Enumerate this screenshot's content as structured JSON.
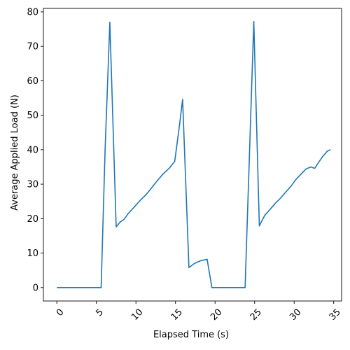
{
  "chart_data": {
    "type": "line",
    "title": "",
    "xlabel": "Elapsed Time (s)",
    "ylabel": "Average Applied Load (N)",
    "xlim": [
      -1.7,
      36.0
    ],
    "ylim": [
      -3.9,
      81.0
    ],
    "xticks": [
      0,
      5,
      10,
      15,
      20,
      25,
      30,
      35
    ],
    "xtick_labels": [
      "0",
      "5",
      "10",
      "15",
      "20",
      "25",
      "30",
      "35"
    ],
    "yticks": [
      0,
      10,
      20,
      30,
      40,
      50,
      60,
      70,
      80
    ],
    "ytick_labels": [
      "0",
      "10",
      "20",
      "30",
      "40",
      "50",
      "60",
      "70",
      "80"
    ],
    "xtick_rotation": 45,
    "grid": false,
    "line_color": "#1f77b4",
    "series": [
      {
        "x": [
          0.0,
          5.6,
          6.1,
          6.7,
          7.5,
          8.0,
          8.5,
          9.0,
          9.8,
          10.5,
          11.3,
          12.0,
          12.7,
          13.4,
          14.2,
          14.9,
          15.5,
          15.9,
          16.7,
          17.4,
          18.2,
          19.0,
          19.6,
          20.2,
          23.8,
          24.3,
          24.9,
          25.6,
          26.3,
          27.0,
          27.6,
          28.3,
          28.9,
          29.6,
          30.2,
          30.9,
          31.5,
          32.1,
          32.6,
          33.0,
          33.6,
          34.2,
          34.6
        ],
        "y": [
          0.0,
          0.0,
          40.0,
          77.0,
          17.6,
          19.0,
          19.8,
          21.4,
          23.4,
          25.2,
          27.0,
          29.0,
          31.0,
          32.9,
          34.6,
          36.6,
          47.0,
          54.6,
          5.8,
          7.0,
          7.8,
          8.2,
          0.0,
          0.0,
          0.0,
          35.0,
          77.2,
          17.9,
          21.0,
          22.8,
          24.4,
          26.0,
          27.6,
          29.4,
          31.3,
          33.0,
          34.4,
          35.0,
          34.6,
          36.0,
          38.0,
          39.6,
          40.0
        ]
      }
    ]
  }
}
